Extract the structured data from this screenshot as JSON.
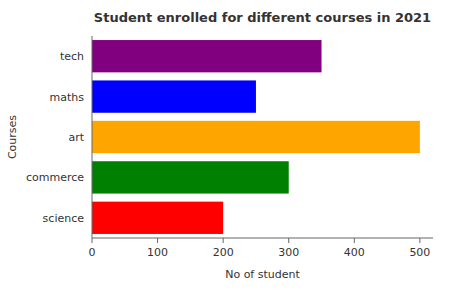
{
  "chart_data": {
    "type": "bar",
    "orientation": "horizontal",
    "title": "Student enrolled for different courses in 2021",
    "xlabel": "No of student",
    "ylabel": "Courses",
    "categories": [
      "science",
      "commerce",
      "art",
      "maths",
      "tech"
    ],
    "values": [
      200,
      300,
      500,
      250,
      350
    ],
    "colors": [
      "red",
      "green",
      "orange",
      "blue",
      "purple"
    ],
    "xlim": [
      0,
      520
    ],
    "xticks": [
      0,
      100,
      200,
      300,
      400,
      500
    ]
  }
}
